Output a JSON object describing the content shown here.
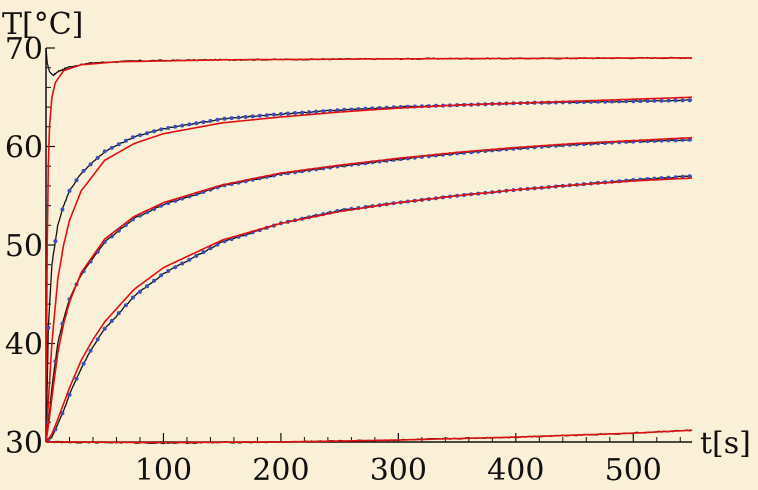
{
  "chart_data": {
    "type": "line",
    "title": "",
    "xlabel": "t[s]",
    "ylabel": "T[°C]",
    "xlim": [
      0,
      550
    ],
    "ylim": [
      30,
      70
    ],
    "grid": false,
    "legend": "none",
    "x_ticks": [
      100,
      200,
      300,
      400,
      500
    ],
    "y_ticks": [
      30,
      40,
      50,
      60,
      70
    ],
    "x_tick_labels": [
      "100",
      "200",
      "300",
      "400",
      "500"
    ],
    "y_tick_labels": [
      "30",
      "40",
      "50",
      "60",
      "70"
    ],
    "colors": {
      "measured": "#111111",
      "markers": "#3a50b8",
      "fit": "#e01010"
    },
    "series": [
      {
        "points": [
          [
            0,
            70
          ],
          [
            1,
            68.5
          ],
          [
            3,
            67.6
          ],
          [
            6,
            67.2
          ],
          [
            10,
            67.6
          ],
          [
            20,
            68.1
          ],
          [
            40,
            68.5
          ],
          [
            80,
            68.7
          ],
          [
            150,
            68.8
          ],
          [
            300,
            68.9
          ],
          [
            550,
            69.0
          ]
        ],
        "fit": [
          [
            0,
            30
          ],
          [
            1,
            50
          ],
          [
            2,
            58
          ],
          [
            3,
            62
          ],
          [
            5,
            65
          ],
          [
            8,
            66.5
          ],
          [
            15,
            67.7
          ],
          [
            30,
            68.3
          ],
          [
            60,
            68.6
          ],
          [
            150,
            68.8
          ],
          [
            300,
            68.9
          ],
          [
            550,
            69.0
          ]
        ],
        "markers": false
      },
      {
        "points": [
          [
            0,
            30
          ],
          [
            2,
            41.6
          ],
          [
            5,
            48
          ],
          [
            10,
            52
          ],
          [
            15,
            54
          ],
          [
            20,
            55.5
          ],
          [
            30,
            57.3
          ],
          [
            50,
            59.5
          ],
          [
            75,
            61
          ],
          [
            100,
            61.8
          ],
          [
            150,
            62.8
          ],
          [
            200,
            63.3
          ],
          [
            250,
            63.7
          ],
          [
            300,
            64
          ],
          [
            350,
            64.2
          ],
          [
            400,
            64.4
          ],
          [
            450,
            64.5
          ],
          [
            500,
            64.6
          ],
          [
            550,
            64.7
          ]
        ],
        "fit": [
          [
            0,
            30
          ],
          [
            3,
            36
          ],
          [
            5,
            40
          ],
          [
            10,
            46.5
          ],
          [
            15,
            50
          ],
          [
            20,
            52.5
          ],
          [
            30,
            55.5
          ],
          [
            50,
            58.6
          ],
          [
            75,
            60.3
          ],
          [
            100,
            61.3
          ],
          [
            150,
            62.4
          ],
          [
            200,
            63.0
          ],
          [
            250,
            63.5
          ],
          [
            300,
            63.9
          ],
          [
            350,
            64.2
          ],
          [
            400,
            64.4
          ],
          [
            450,
            64.6
          ],
          [
            500,
            64.8
          ],
          [
            550,
            65.0
          ]
        ],
        "markers": true
      },
      {
        "points": [
          [
            0,
            30
          ],
          [
            3,
            33
          ],
          [
            5,
            35.5
          ],
          [
            10,
            40
          ],
          [
            15,
            42.5
          ],
          [
            20,
            44.5
          ],
          [
            30,
            47
          ],
          [
            50,
            50.3
          ],
          [
            75,
            52.7
          ],
          [
            100,
            54.1
          ],
          [
            150,
            56
          ],
          [
            200,
            57.2
          ],
          [
            250,
            58
          ],
          [
            300,
            58.7
          ],
          [
            350,
            59.3
          ],
          [
            400,
            59.8
          ],
          [
            450,
            60.2
          ],
          [
            500,
            60.5
          ],
          [
            550,
            60.7
          ]
        ],
        "fit": [
          [
            0,
            30
          ],
          [
            3,
            32.5
          ],
          [
            5,
            34.5
          ],
          [
            10,
            39
          ],
          [
            15,
            42
          ],
          [
            20,
            44.2
          ],
          [
            30,
            47.2
          ],
          [
            50,
            50.6
          ],
          [
            75,
            52.9
          ],
          [
            100,
            54.3
          ],
          [
            150,
            56.1
          ],
          [
            200,
            57.3
          ],
          [
            250,
            58.1
          ],
          [
            300,
            58.8
          ],
          [
            350,
            59.4
          ],
          [
            400,
            59.9
          ],
          [
            450,
            60.3
          ],
          [
            500,
            60.6
          ],
          [
            550,
            60.9
          ]
        ],
        "markers": true
      },
      {
        "points": [
          [
            0,
            30
          ],
          [
            5,
            30.5
          ],
          [
            10,
            31.8
          ],
          [
            15,
            33.2
          ],
          [
            20,
            34.8
          ],
          [
            30,
            37.5
          ],
          [
            40,
            39.7
          ],
          [
            50,
            41.5
          ],
          [
            75,
            44.8
          ],
          [
            100,
            47.1
          ],
          [
            150,
            50.3
          ],
          [
            200,
            52.2
          ],
          [
            250,
            53.5
          ],
          [
            300,
            54.3
          ],
          [
            350,
            55
          ],
          [
            400,
            55.6
          ],
          [
            450,
            56.1
          ],
          [
            500,
            56.6
          ],
          [
            550,
            57
          ]
        ],
        "fit": [
          [
            0,
            30
          ],
          [
            5,
            30.8
          ],
          [
            10,
            32.3
          ],
          [
            15,
            33.9
          ],
          [
            20,
            35.5
          ],
          [
            30,
            38.3
          ],
          [
            40,
            40.4
          ],
          [
            50,
            42.2
          ],
          [
            75,
            45.5
          ],
          [
            100,
            47.7
          ],
          [
            150,
            50.5
          ],
          [
            200,
            52.2
          ],
          [
            250,
            53.4
          ],
          [
            300,
            54.3
          ],
          [
            350,
            55
          ],
          [
            400,
            55.6
          ],
          [
            450,
            56.1
          ],
          [
            500,
            56.5
          ],
          [
            550,
            56.8
          ]
        ],
        "markers": true
      },
      {
        "points": [
          [
            0,
            30
          ],
          [
            100,
            29.9
          ],
          [
            200,
            30
          ],
          [
            300,
            30.2
          ],
          [
            400,
            30.5
          ],
          [
            500,
            30.9
          ],
          [
            550,
            31.2
          ]
        ],
        "fit": [
          [
            0,
            30
          ],
          [
            100,
            29.95
          ],
          [
            200,
            30
          ],
          [
            300,
            30.2
          ],
          [
            400,
            30.5
          ],
          [
            500,
            30.9
          ],
          [
            550,
            31.2
          ]
        ],
        "markers": false
      }
    ]
  }
}
